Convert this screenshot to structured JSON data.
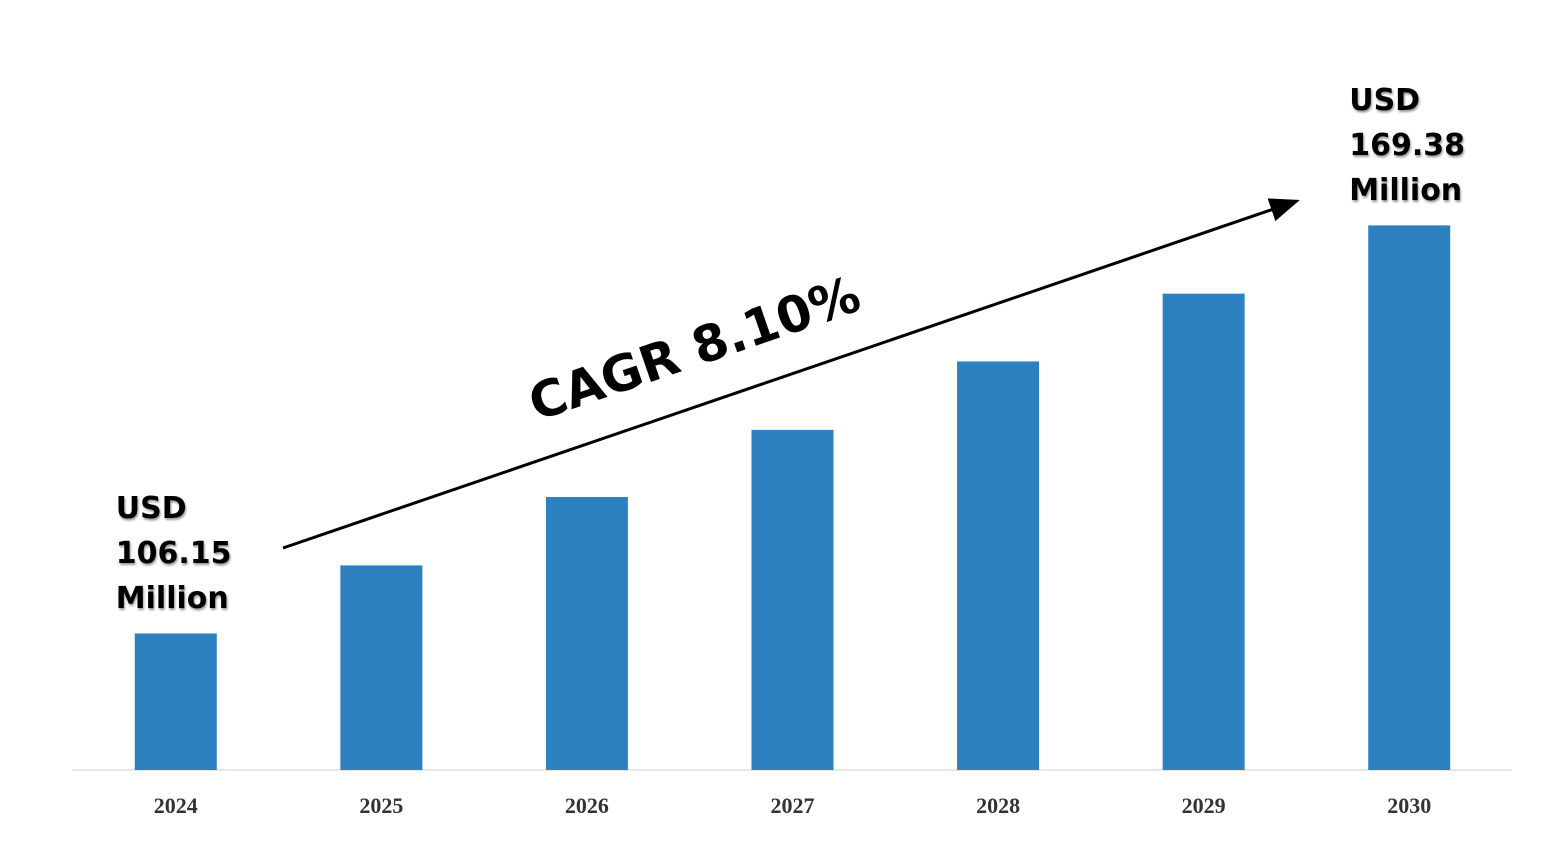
{
  "chart_data": {
    "type": "bar",
    "categories": [
      "2024",
      "2025",
      "2026",
      "2027",
      "2028",
      "2029",
      "2030"
    ],
    "values": [
      106.15,
      116.7,
      127.3,
      137.7,
      148.3,
      158.8,
      169.38
    ],
    "value_labels": [
      "USD 106.15 Million",
      null,
      null,
      null,
      null,
      null,
      "USD 169.38 Million"
    ],
    "color": "#2e81c1",
    "ylim": [
      85,
      195
    ],
    "annotations": [
      "CAGR 8.10%"
    ]
  }
}
